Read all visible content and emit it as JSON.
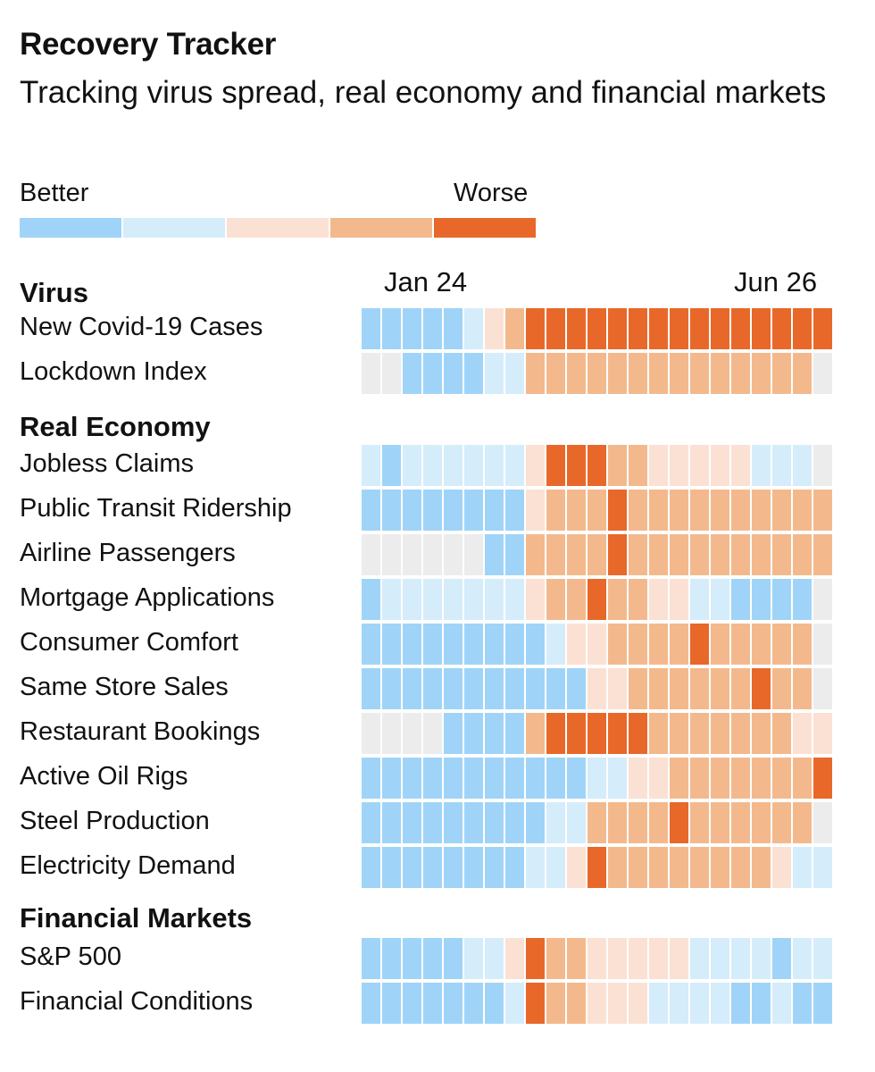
{
  "header": {
    "title": "Recovery Tracker",
    "subtitle": "Tracking virus spread, real economy and financial markets"
  },
  "legend": {
    "better_label": "Better",
    "worse_label": "Worse",
    "colors": [
      "#9fd4f8",
      "#d5ecfb",
      "#fbe1d3",
      "#f3b98d",
      "#e8682a"
    ]
  },
  "palette": {
    "na": "#ececec",
    "levels": [
      "#9fd4f8",
      "#d5ecfb",
      "#fbe1d3",
      "#f3b98d",
      "#e8682a"
    ]
  },
  "chart_data": {
    "type": "heatmap",
    "title": "Recovery Tracker",
    "subtitle": "Tracking virus spread, real economy and financial markets",
    "x_start_label": "Jan 24",
    "x_end_label": "Jun 26",
    "columns": 23,
    "scale": {
      "0": "Better (dark blue)",
      "1": "light blue",
      "2": "light orange",
      "3": "orange",
      "4": "Worse (dark orange)",
      "null": "no data"
    },
    "sections": [
      {
        "name": "Virus",
        "rows": [
          {
            "label": "New Covid-19 Cases",
            "values": [
              0,
              0,
              0,
              0,
              0,
              1,
              2,
              3,
              4,
              4,
              4,
              4,
              4,
              4,
              4,
              4,
              4,
              4,
              4,
              4,
              4,
              4,
              4
            ]
          },
          {
            "label": "Lockdown Index",
            "values": [
              null,
              null,
              0,
              0,
              0,
              0,
              1,
              1,
              3,
              3,
              3,
              3,
              3,
              3,
              3,
              3,
              3,
              3,
              3,
              3,
              3,
              3,
              null
            ]
          }
        ]
      },
      {
        "name": "Real Economy",
        "rows": [
          {
            "label": "Jobless Claims",
            "values": [
              1,
              0,
              1,
              1,
              1,
              1,
              1,
              1,
              2,
              4,
              4,
              4,
              3,
              3,
              2,
              2,
              2,
              2,
              2,
              1,
              1,
              1,
              null
            ]
          },
          {
            "label": "Public Transit Ridership",
            "values": [
              0,
              0,
              0,
              0,
              0,
              0,
              0,
              0,
              2,
              3,
              3,
              3,
              4,
              3,
              3,
              3,
              3,
              3,
              3,
              3,
              3,
              3,
              3
            ]
          },
          {
            "label": "Airline Passengers",
            "values": [
              null,
              null,
              null,
              null,
              null,
              null,
              0,
              0,
              3,
              3,
              3,
              3,
              4,
              3,
              3,
              3,
              3,
              3,
              3,
              3,
              3,
              3,
              3
            ]
          },
          {
            "label": "Mortgage Applications",
            "values": [
              0,
              1,
              1,
              1,
              1,
              1,
              1,
              1,
              2,
              3,
              3,
              4,
              3,
              3,
              2,
              2,
              1,
              1,
              0,
              0,
              0,
              0,
              null
            ]
          },
          {
            "label": "Consumer Comfort",
            "values": [
              0,
              0,
              0,
              0,
              0,
              0,
              0,
              0,
              0,
              1,
              2,
              2,
              3,
              3,
              3,
              3,
              4,
              3,
              3,
              3,
              3,
              3,
              null
            ]
          },
          {
            "label": "Same Store Sales",
            "values": [
              0,
              0,
              0,
              0,
              0,
              0,
              0,
              0,
              0,
              0,
              0,
              2,
              2,
              3,
              3,
              3,
              3,
              3,
              3,
              4,
              3,
              3,
              null
            ]
          },
          {
            "label": "Restaurant Bookings",
            "values": [
              null,
              null,
              null,
              null,
              0,
              0,
              0,
              0,
              3,
              4,
              4,
              4,
              4,
              4,
              3,
              3,
              3,
              3,
              3,
              3,
              3,
              2,
              2
            ]
          },
          {
            "label": "Active Oil Rigs",
            "values": [
              0,
              0,
              0,
              0,
              0,
              0,
              0,
              0,
              0,
              0,
              0,
              1,
              1,
              2,
              2,
              3,
              3,
              3,
              3,
              3,
              3,
              3,
              4
            ]
          },
          {
            "label": "Steel Production",
            "values": [
              0,
              0,
              0,
              0,
              0,
              0,
              0,
              0,
              0,
              1,
              1,
              3,
              3,
              3,
              3,
              4,
              3,
              3,
              3,
              3,
              3,
              3,
              null
            ]
          },
          {
            "label": "Electricity Demand",
            "values": [
              0,
              0,
              0,
              0,
              0,
              0,
              0,
              0,
              1,
              1,
              2,
              4,
              3,
              3,
              3,
              3,
              3,
              3,
              3,
              3,
              2,
              1,
              1
            ]
          }
        ]
      },
      {
        "name": "Financial Markets",
        "rows": [
          {
            "label": "S&P 500",
            "values": [
              0,
              0,
              0,
              0,
              0,
              1,
              1,
              2,
              4,
              3,
              3,
              2,
              2,
              2,
              2,
              2,
              1,
              1,
              1,
              1,
              0,
              1,
              1
            ]
          },
          {
            "label": "Financial Conditions",
            "values": [
              0,
              0,
              0,
              0,
              0,
              0,
              0,
              1,
              4,
              3,
              3,
              2,
              2,
              2,
              1,
              1,
              1,
              1,
              0,
              0,
              1,
              0,
              0
            ]
          }
        ]
      }
    ]
  }
}
